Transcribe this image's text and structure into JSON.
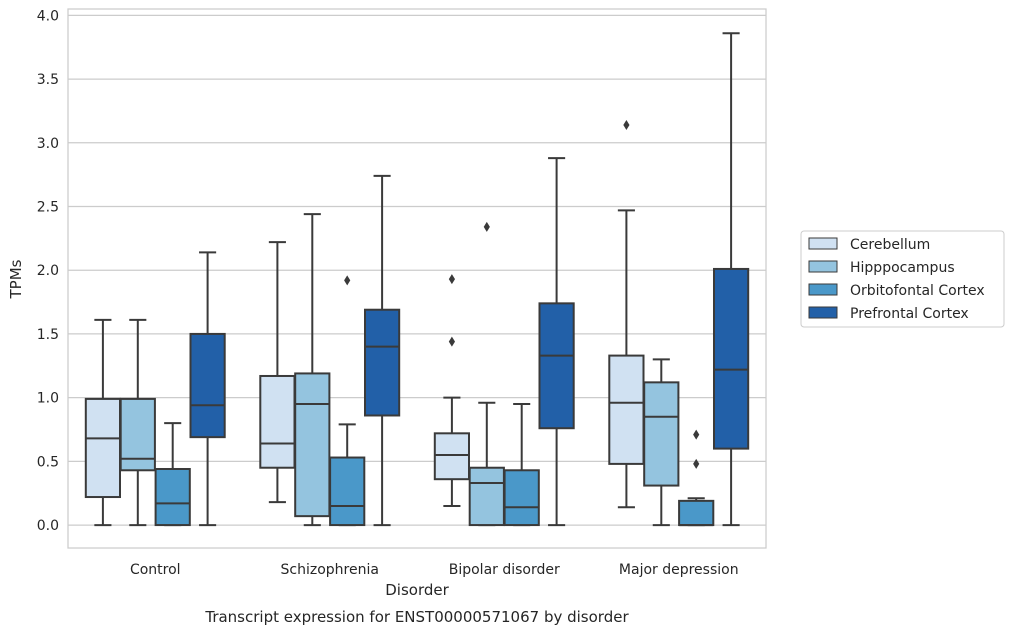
{
  "chart_data": {
    "type": "box",
    "title": "",
    "caption": "Transcript expression for ENST00000571067 by disorder",
    "xlabel": "Disorder",
    "ylabel": "TPMs",
    "ylim": [
      -0.18,
      4.05
    ],
    "yticks": [
      "0.0",
      "0.5",
      "1.0",
      "1.5",
      "2.0",
      "2.5",
      "3.0",
      "3.5",
      "4.0"
    ],
    "grid": true,
    "legend_position": "right",
    "categories": [
      "Control",
      "Schizophrenia",
      "Bipolar disorder",
      "Major depression"
    ],
    "series": [
      {
        "name": "Cerebellum",
        "color": "#d0e1f2",
        "boxes": [
          {
            "whisker_low": 0.0,
            "q1": 0.22,
            "median": 0.68,
            "q3": 0.99,
            "whisker_high": 1.61,
            "outliers": []
          },
          {
            "whisker_low": 0.18,
            "q1": 0.45,
            "median": 0.64,
            "q3": 1.17,
            "whisker_high": 2.22,
            "outliers": []
          },
          {
            "whisker_low": 0.15,
            "q1": 0.36,
            "median": 0.55,
            "q3": 0.72,
            "whisker_high": 1.0,
            "outliers": [
              1.44,
              1.93
            ]
          },
          {
            "whisker_low": 0.14,
            "q1": 0.48,
            "median": 0.96,
            "q3": 1.33,
            "whisker_high": 2.47,
            "outliers": [
              3.14
            ]
          }
        ]
      },
      {
        "name": "Hipppocampus",
        "color": "#94c4df",
        "boxes": [
          {
            "whisker_low": 0.0,
            "q1": 0.43,
            "median": 0.52,
            "q3": 0.99,
            "whisker_high": 1.61,
            "outliers": []
          },
          {
            "whisker_low": 0.0,
            "q1": 0.07,
            "median": 0.95,
            "q3": 1.19,
            "whisker_high": 2.44,
            "outliers": []
          },
          {
            "whisker_low": 0.0,
            "q1": 0.0,
            "median": 0.33,
            "q3": 0.45,
            "whisker_high": 0.96,
            "outliers": [
              2.34
            ]
          },
          {
            "whisker_low": 0.0,
            "q1": 0.31,
            "median": 0.85,
            "q3": 1.12,
            "whisker_high": 1.3,
            "outliers": []
          }
        ]
      },
      {
        "name": "Orbitofontal Cortex",
        "color": "#4a98c9",
        "boxes": [
          {
            "whisker_low": 0.0,
            "q1": 0.0,
            "median": 0.17,
            "q3": 0.44,
            "whisker_high": 0.8,
            "outliers": []
          },
          {
            "whisker_low": 0.0,
            "q1": 0.0,
            "median": 0.15,
            "q3": 0.53,
            "whisker_high": 0.79,
            "outliers": [
              1.92
            ]
          },
          {
            "whisker_low": 0.0,
            "q1": 0.0,
            "median": 0.14,
            "q3": 0.43,
            "whisker_high": 0.95,
            "outliers": []
          },
          {
            "whisker_low": 0.0,
            "q1": 0.0,
            "median": 0.0,
            "q3": 0.19,
            "whisker_high": 0.21,
            "outliers": [
              0.48,
              0.71
            ]
          }
        ]
      },
      {
        "name": "Prefrontal Cortex",
        "color": "#2260a8",
        "boxes": [
          {
            "whisker_low": 0.0,
            "q1": 0.69,
            "median": 0.94,
            "q3": 1.5,
            "whisker_high": 2.14,
            "outliers": []
          },
          {
            "whisker_low": 0.0,
            "q1": 0.86,
            "median": 1.4,
            "q3": 1.69,
            "whisker_high": 2.74,
            "outliers": []
          },
          {
            "whisker_low": 0.0,
            "q1": 0.76,
            "median": 1.33,
            "q3": 1.74,
            "whisker_high": 2.88,
            "outliers": []
          },
          {
            "whisker_low": 0.0,
            "q1": 0.6,
            "median": 1.22,
            "q3": 2.01,
            "whisker_high": 3.86,
            "outliers": []
          }
        ]
      }
    ]
  }
}
